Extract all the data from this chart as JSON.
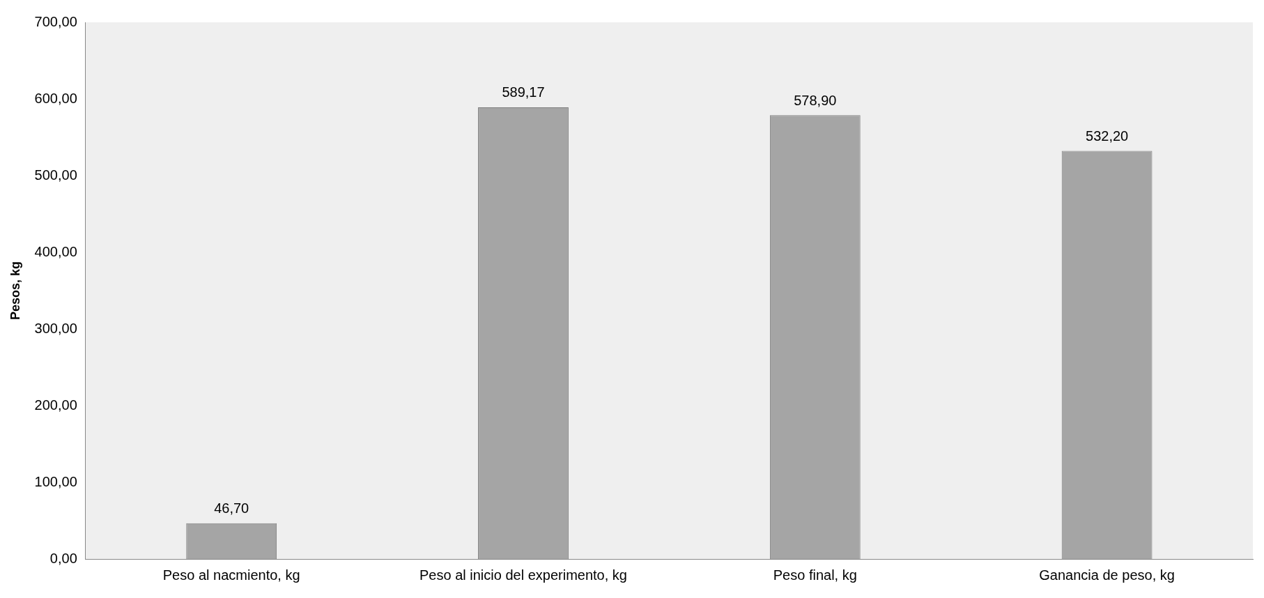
{
  "chart_data": {
    "type": "bar",
    "ylabel": "Pesos, kg",
    "categories": [
      "Peso al nacmiento, kg",
      "Peso al inicio del experimento, kg",
      "Peso final, kg",
      "Ganancia de peso, kg"
    ],
    "values": [
      46.7,
      589.17,
      578.9,
      532.2
    ],
    "value_labels": [
      "46,70",
      "589,17",
      "578,90",
      "532,20"
    ],
    "color": "#a5a5a5",
    "ylim": [
      0,
      700
    ],
    "yticks": [
      {
        "value": 0,
        "label": "0,00"
      },
      {
        "value": 100,
        "label": "100,00"
      },
      {
        "value": 200,
        "label": "200,00"
      },
      {
        "value": 300,
        "label": "300,00"
      },
      {
        "value": 400,
        "label": "400,00"
      },
      {
        "value": 500,
        "label": "500,00"
      },
      {
        "value": 600,
        "label": "600,00"
      },
      {
        "value": 700,
        "label": "700,00"
      }
    ],
    "grid": false,
    "legend": false
  }
}
